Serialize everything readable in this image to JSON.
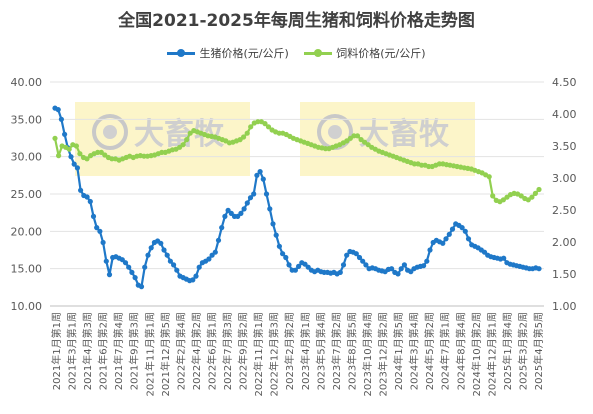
{
  "chart_data": {
    "type": "line",
    "title": "全国2021-2025年每周生猪和饲料价格走势图",
    "watermark": "大畜牧",
    "grid": true,
    "legend_placement": "top-center",
    "y_left": {
      "min": 10,
      "max": 40,
      "ticks": [
        "10.00",
        "15.00",
        "20.00",
        "25.00",
        "30.00",
        "35.00",
        "40.00"
      ]
    },
    "y_right": {
      "min": 1.0,
      "max": 4.5,
      "ticks": [
        "1.00",
        "1.50",
        "2.00",
        "2.50",
        "3.00",
        "3.50",
        "4.00",
        "4.50"
      ]
    },
    "x_labels": [
      "2021年1月第1周",
      "2021年3月第1周",
      "2021年4月第3周",
      "2021年6月第2周",
      "2021年7月第4周",
      "2021年9月第3周",
      "2021年11月第1周",
      "2021年12月第5周",
      "2022年2月第4周",
      "2022年4月第2周",
      "2022年6月第1周",
      "2022年7月第3周",
      "2022年9月第2周",
      "2022年11月第1周",
      "2022年12月第3周",
      "2023年2月第2周",
      "2023年4月第1周",
      "2023年5月第4周",
      "2023年7月第2周",
      "2023年8月第5周",
      "2023年10月第4周",
      "2023年12月第2周",
      "2024年1月第5周",
      "2024年3月第4周",
      "2024年5月第2周",
      "2024年7月第1周",
      "2024年8月第4周",
      "2024年10月第2周",
      "2024年12月第1周",
      "2025年1月第4周",
      "2025年3月第2周",
      "2025年4月第5周"
    ],
    "series": [
      {
        "name": "生猪价格(元/公斤)",
        "axis": "left",
        "color": "#1f78c8",
        "values": [
          36.5,
          36.3,
          35.0,
          33.0,
          31.2,
          30.0,
          29.0,
          28.5,
          25.5,
          24.8,
          24.6,
          24.0,
          22.0,
          20.5,
          20.0,
          18.5,
          16.0,
          14.2,
          16.5,
          16.6,
          16.4,
          16.2,
          15.8,
          15.2,
          14.5,
          13.8,
          12.8,
          12.6,
          15.2,
          16.8,
          17.8,
          18.5,
          18.7,
          18.4,
          17.5,
          16.8,
          16.0,
          15.5,
          14.8,
          14.0,
          13.8,
          13.6,
          13.4,
          13.5,
          14.0,
          15.2,
          15.8,
          16.0,
          16.3,
          16.8,
          17.2,
          18.8,
          20.5,
          22.0,
          22.8,
          22.4,
          22.0,
          22.0,
          22.4,
          23.0,
          23.8,
          24.5,
          25.0,
          27.5,
          28.0,
          27.0,
          25.0,
          23.0,
          21.0,
          19.5,
          18.0,
          17.0,
          16.5,
          15.5,
          14.8,
          14.8,
          15.3,
          15.8,
          15.6,
          15.2,
          14.8,
          14.6,
          14.8,
          14.6,
          14.5,
          14.5,
          14.4,
          14.5,
          14.3,
          14.5,
          15.5,
          16.8,
          17.3,
          17.2,
          17.0,
          16.5,
          16.0,
          15.5,
          15.0,
          15.1,
          15.0,
          14.8,
          14.7,
          14.6,
          14.9,
          15.0,
          14.5,
          14.3,
          15.0,
          15.5,
          14.8,
          14.6,
          15.0,
          15.2,
          15.3,
          15.4,
          16.0,
          17.5,
          18.5,
          18.8,
          18.6,
          18.4,
          19.0,
          19.6,
          20.3,
          21.0,
          20.8,
          20.5,
          20.0,
          19.0,
          18.2,
          18.0,
          17.8,
          17.5,
          17.2,
          16.8,
          16.6,
          16.5,
          16.4,
          16.3,
          16.4,
          15.8,
          15.6,
          15.5,
          15.4,
          15.3,
          15.2,
          15.1,
          15.0,
          15.0,
          15.1,
          15.0
        ]
      },
      {
        "name": "饲料价格(元/公斤)",
        "axis": "right",
        "color": "#92d050",
        "values": [
          3.62,
          3.35,
          3.5,
          3.48,
          3.45,
          3.52,
          3.5,
          3.38,
          3.32,
          3.3,
          3.35,
          3.38,
          3.4,
          3.4,
          3.36,
          3.32,
          3.3,
          3.3,
          3.28,
          3.3,
          3.32,
          3.34,
          3.32,
          3.34,
          3.35,
          3.34,
          3.34,
          3.35,
          3.36,
          3.38,
          3.4,
          3.4,
          3.42,
          3.44,
          3.45,
          3.48,
          3.52,
          3.6,
          3.7,
          3.74,
          3.72,
          3.7,
          3.68,
          3.66,
          3.65,
          3.64,
          3.62,
          3.6,
          3.58,
          3.55,
          3.56,
          3.58,
          3.6,
          3.64,
          3.7,
          3.8,
          3.86,
          3.88,
          3.88,
          3.85,
          3.8,
          3.75,
          3.72,
          3.7,
          3.7,
          3.68,
          3.65,
          3.62,
          3.6,
          3.58,
          3.56,
          3.54,
          3.52,
          3.5,
          3.48,
          3.47,
          3.46,
          3.46,
          3.48,
          3.5,
          3.52,
          3.55,
          3.58,
          3.62,
          3.66,
          3.66,
          3.6,
          3.56,
          3.52,
          3.48,
          3.45,
          3.42,
          3.4,
          3.38,
          3.36,
          3.34,
          3.32,
          3.3,
          3.28,
          3.26,
          3.24,
          3.22,
          3.22,
          3.2,
          3.2,
          3.18,
          3.18,
          3.2,
          3.22,
          3.22,
          3.21,
          3.2,
          3.19,
          3.18,
          3.17,
          3.16,
          3.15,
          3.14,
          3.12,
          3.1,
          3.08,
          3.05,
          3.02,
          2.72,
          2.65,
          2.63,
          2.66,
          2.7,
          2.74,
          2.76,
          2.75,
          2.72,
          2.68,
          2.66,
          2.7,
          2.76,
          2.82
        ]
      }
    ]
  }
}
